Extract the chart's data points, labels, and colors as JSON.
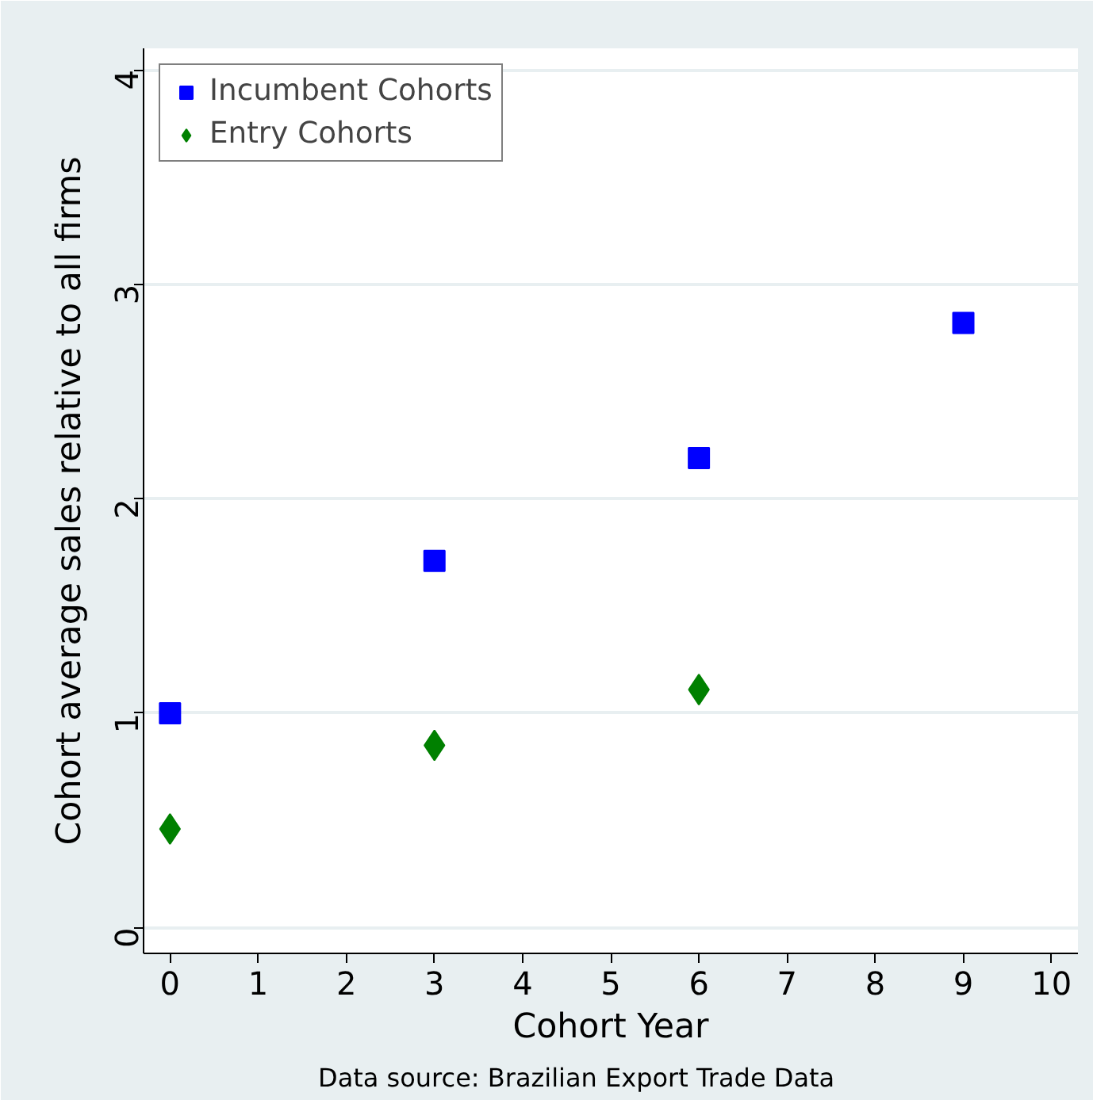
{
  "chart_data": {
    "type": "scatter",
    "xlabel": "Cohort Year",
    "ylabel": "Cohort average sales relative to all firms",
    "annotations": [
      "Data source:  Brazilian Export Trade Data"
    ],
    "xlim": [
      -0.3,
      10.3
    ],
    "ylim": [
      -0.12,
      4.1
    ],
    "xticks": [
      0,
      1,
      2,
      3,
      4,
      5,
      6,
      7,
      8,
      9,
      10
    ],
    "yticks": [
      0,
      1,
      2,
      3,
      4
    ],
    "grid": "y",
    "legend": "top left",
    "series": [
      {
        "name": "Incumbent Cohorts",
        "color": "#0000ff",
        "marker": "square",
        "x": [
          0,
          3,
          6,
          9
        ],
        "values": [
          1.0,
          1.71,
          2.19,
          2.82
        ]
      },
      {
        "name": "Entry Cohorts",
        "color": "#008000",
        "marker": "diamond",
        "x": [
          0,
          3,
          6
        ],
        "values": [
          0.46,
          0.85,
          1.11
        ]
      }
    ]
  }
}
